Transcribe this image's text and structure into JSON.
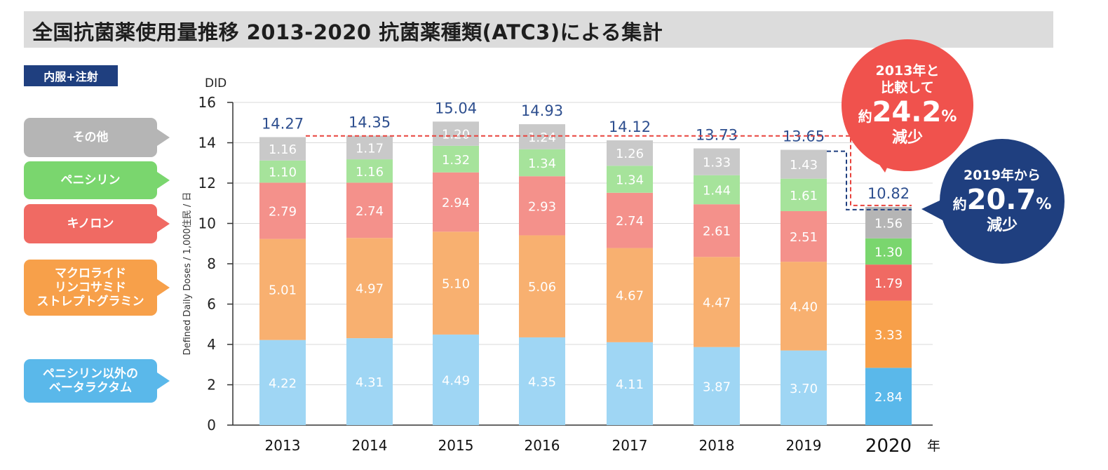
{
  "title": "全国抗菌薬使用量推移 2013-2020 抗菌薬種類(ATC3)による集計",
  "route_badge": "内服+注射",
  "legend": [
    {
      "key": "other",
      "label": "その他",
      "color": "#b5b5b5"
    },
    {
      "key": "penicillin",
      "label": "ペニシリン",
      "color": "#7ad66e"
    },
    {
      "key": "quinolone",
      "label": "キノロン",
      "color": "#f06a63"
    },
    {
      "key": "macrolide",
      "label": "マクロライド\nリンコサミド\nストレプトグラミン",
      "color": "#f7a04a"
    },
    {
      "key": "betalactam",
      "label": "ペニシリン以外の\nベータラクタム",
      "color": "#5ab8ea"
    }
  ],
  "chart_data": {
    "type": "bar",
    "stacked": true,
    "ylabel_unit": "DID",
    "ylabel": "Defined Daily Doses / 1,000住民 / 日",
    "xlabel_suffix": "年",
    "ylim": [
      0,
      16
    ],
    "yticks": [
      0,
      2,
      4,
      6,
      8,
      10,
      12,
      14,
      16
    ],
    "grid": true,
    "categories": [
      "2013",
      "2014",
      "2015",
      "2016",
      "2017",
      "2018",
      "2019",
      "2020"
    ],
    "totals": [
      14.27,
      14.35,
      15.04,
      14.93,
      14.12,
      13.73,
      13.65,
      10.82
    ],
    "series": [
      {
        "name": "ペニシリン以外のベータラクタム",
        "key": "betalactam",
        "values": [
          4.22,
          4.31,
          4.49,
          4.35,
          4.11,
          3.87,
          3.7,
          2.84
        ]
      },
      {
        "name": "マクロライド リンコサミド ストレプトグラミン",
        "key": "macrolide",
        "values": [
          5.01,
          4.97,
          5.1,
          5.06,
          4.67,
          4.47,
          4.4,
          3.33
        ]
      },
      {
        "name": "キノロン",
        "key": "quinolone",
        "values": [
          2.79,
          2.74,
          2.94,
          2.93,
          2.74,
          2.61,
          2.51,
          1.79
        ]
      },
      {
        "name": "ペニシリン",
        "key": "penicillin",
        "values": [
          1.1,
          1.16,
          1.32,
          1.34,
          1.34,
          1.44,
          1.61,
          1.3
        ]
      },
      {
        "name": "その他",
        "key": "other",
        "values": [
          1.16,
          1.17,
          1.2,
          1.24,
          1.26,
          1.33,
          1.43,
          1.56
        ]
      }
    ],
    "colors_light": {
      "betalactam": "#9fd6f4",
      "macrolide": "#f8b070",
      "quinolone": "#f4918b",
      "penicillin": "#a6e39b",
      "other": "#c9c9c9"
    },
    "colors_bright": {
      "betalactam": "#5ab8ea",
      "macrolide": "#f7a04a",
      "quinolone": "#f06a63",
      "penicillin": "#7ad66e",
      "other": "#b5b5b5"
    },
    "highlight_category": "2020"
  },
  "callouts": {
    "vs2013": {
      "line1": "2013年と\n比較して",
      "prefix": "約",
      "value": "24.2",
      "unit": "%",
      "tail": "減少",
      "color": "#f0524d"
    },
    "vs2019": {
      "line1": "2019年から",
      "prefix": "約",
      "value": "20.7",
      "unit": "%",
      "tail": "減少",
      "color": "#1f3f7f"
    }
  }
}
